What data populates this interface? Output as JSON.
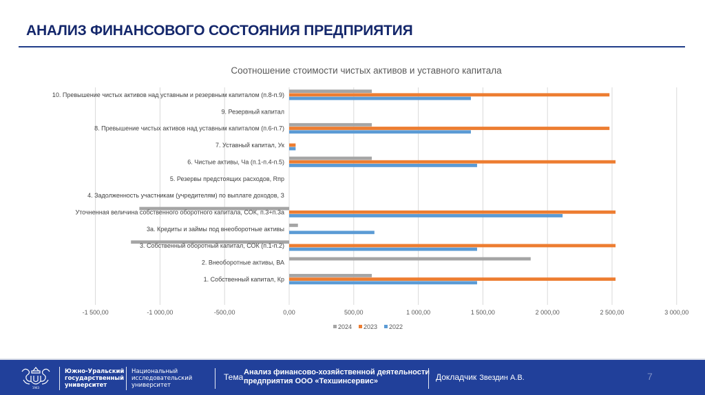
{
  "header": {
    "title": "АНАЛИЗ ФИНАНСОВОГО СОСТОЯНИЯ ПРЕДПРИЯТИЯ"
  },
  "chart_data": {
    "type": "bar",
    "orientation": "horizontal",
    "title": "Соотношение стоимости чистых активов и уставного капитала",
    "xlabel": "",
    "ylabel": "",
    "xlim": [
      -1500,
      3000
    ],
    "x_ticks": [
      -1500,
      -1000,
      -500,
      0,
      500,
      1000,
      1500,
      2000,
      2500,
      3000
    ],
    "x_tick_labels": [
      "-1 500,00",
      "-1 000,00",
      "-500,00",
      "0,00",
      "500,00",
      "1 000,00",
      "1 500,00",
      "2 000,00",
      "2 500,00",
      "3 000,00"
    ],
    "grid": true,
    "legend_position": "bottom",
    "categories": [
      "10. Превышение чистых активов над уставным и резервным капиталом (п.8-п.9)",
      "9. Резервный капитал",
      "8. Превышение чистых активов над уставным капиталом (п.6-п.7)",
      "7. Уставный капитал, Ук",
      "6. Чистые активы, Ча (п.1-п.4-п.5)",
      "5. Резервы предстоящих расходов, Rпр",
      "4. Задолженность участникам (учредителям) по выплате доходов, З",
      "Уточненная величина собственного оборотного капитала, СОК, п.3+п.3а",
      "3а. Кредиты и займы под внеоборотные активы",
      "3. Собственный оборотный капитал, СОК (п.1-п.2)",
      "2. Внеоборотные активы, ВА",
      "1. Собственный капитал, Кр"
    ],
    "series": [
      {
        "name": "2024",
        "color": "#a5a5a5",
        "values": [
          640,
          0,
          640,
          0,
          640,
          0,
          0,
          -1160,
          68,
          -1225,
          1870,
          640
        ]
      },
      {
        "name": "2023",
        "color": "#ed7d31",
        "values": [
          2480,
          0,
          2480,
          50,
          2527,
          0,
          0,
          2527,
          0,
          2527,
          0,
          2527
        ]
      },
      {
        "name": "2022",
        "color": "#5b9bd5",
        "values": [
          1407,
          0,
          1407,
          50,
          1455,
          0,
          0,
          2117,
          660,
          1455,
          0,
          1455
        ]
      }
    ],
    "legend": [
      "2024",
      "2023",
      "2022"
    ]
  },
  "footer": {
    "university_line1": "Южно-Уральский",
    "university_line2": "государственный",
    "university_line3": "университет",
    "national_line1": "Национальный",
    "national_line2": "исследовательский",
    "national_line3": "университет",
    "logo_year": "1943",
    "theme_label": "Тема",
    "theme_line1": "Анализ финансово-хозяйственной деятельности",
    "theme_line2": "предприятия ООО «Техшинсервис»",
    "speaker_label": "Докладчик",
    "speaker_name": "Звездин А.В.",
    "page_number": "7"
  },
  "colors": {
    "title": "#14276b",
    "footer_bg": "#21409a",
    "grid": "#d9d9d9"
  }
}
